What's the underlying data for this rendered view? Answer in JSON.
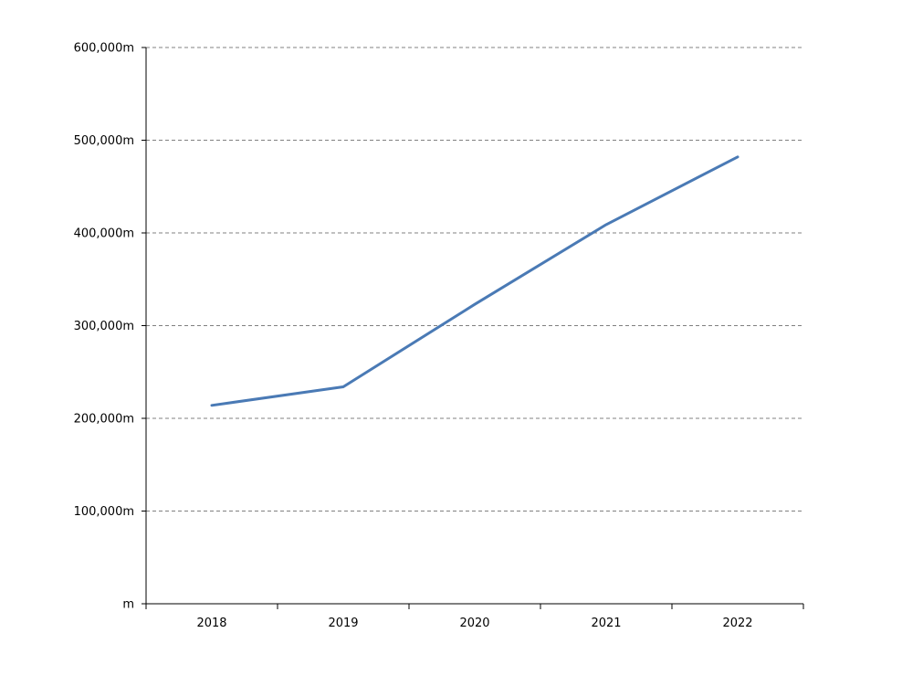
{
  "chart_data": {
    "type": "line",
    "categories": [
      "2018",
      "2019",
      "2020",
      "2021",
      "2022"
    ],
    "series": [
      {
        "color": "#4a7ab5",
        "values": [
          214000,
          234000,
          323000,
          409000,
          482000
        ]
      }
    ],
    "ylim": [
      0,
      600000
    ],
    "yticks": [
      0,
      100000,
      200000,
      300000,
      400000,
      500000,
      600000
    ],
    "ytick_labels": [
      "m",
      "100,000m",
      "200,000m",
      "300,000m",
      "400,000m",
      "500,000m",
      "600,000m"
    ],
    "grid": true,
    "grid_style": "dashed",
    "legend": "none"
  }
}
